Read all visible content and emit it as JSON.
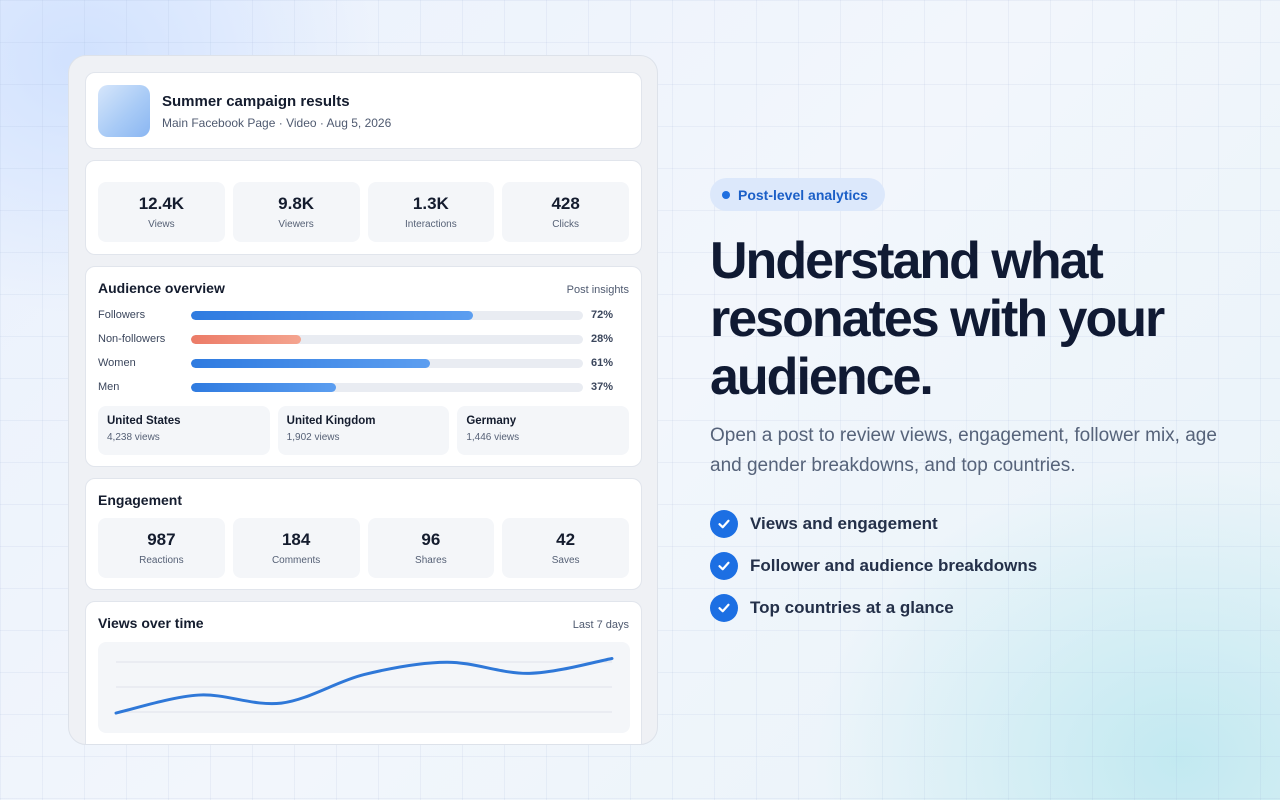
{
  "post": {
    "title": "Summer campaign results",
    "meta": "Main Facebook Page · Video · Aug 5, 2026"
  },
  "stats": [
    {
      "value": "12.4K",
      "label": "Views"
    },
    {
      "value": "9.8K",
      "label": "Viewers"
    },
    {
      "value": "1.3K",
      "label": "Interactions"
    },
    {
      "value": "428",
      "label": "Clicks"
    }
  ],
  "audience": {
    "title": "Audience overview",
    "note": "Post insights",
    "bars": [
      {
        "label": "Followers",
        "pct_text": "72%",
        "value": 72,
        "tone": "cool"
      },
      {
        "label": "Non-followers",
        "pct_text": "28%",
        "value": 28,
        "tone": "warm"
      },
      {
        "label": "Women",
        "pct_text": "61%",
        "value": 61,
        "tone": "cool"
      },
      {
        "label": "Men",
        "pct_text": "37%",
        "value": 37,
        "tone": "cool"
      }
    ],
    "countries": [
      {
        "name": "United States",
        "views": "4,238 views"
      },
      {
        "name": "United Kingdom",
        "views": "1,902 views"
      },
      {
        "name": "Germany",
        "views": "1,446 views"
      }
    ]
  },
  "engagement": {
    "title": "Engagement",
    "items": [
      {
        "value": "987",
        "label": "Reactions"
      },
      {
        "value": "184",
        "label": "Comments"
      },
      {
        "value": "96",
        "label": "Shares"
      },
      {
        "value": "42",
        "label": "Saves"
      }
    ]
  },
  "views_over_time": {
    "title": "Views over time",
    "range": "Last 7 days"
  },
  "chart_data": {
    "type": "line",
    "x": [
      1,
      2,
      3,
      4,
      5,
      6,
      7
    ],
    "values": [
      8,
      37,
      24,
      70,
      90,
      72,
      96
    ],
    "ylim": [
      0,
      100
    ],
    "grid": true,
    "color": "#2f78d8"
  },
  "hero": {
    "badge": "Post-level analytics",
    "headline": "Understand what resonates with your audience.",
    "lede": "Open a post to review views, engagement, follower mix, age and gender breakdowns, and top countries.",
    "features": [
      "Views and engagement",
      "Follower and audience breakdowns",
      "Top countries at a glance"
    ]
  },
  "colors": {
    "accent": "#1c6fe3",
    "bar_cool": "#2f7be0",
    "bar_warm": "#ec7b67"
  }
}
